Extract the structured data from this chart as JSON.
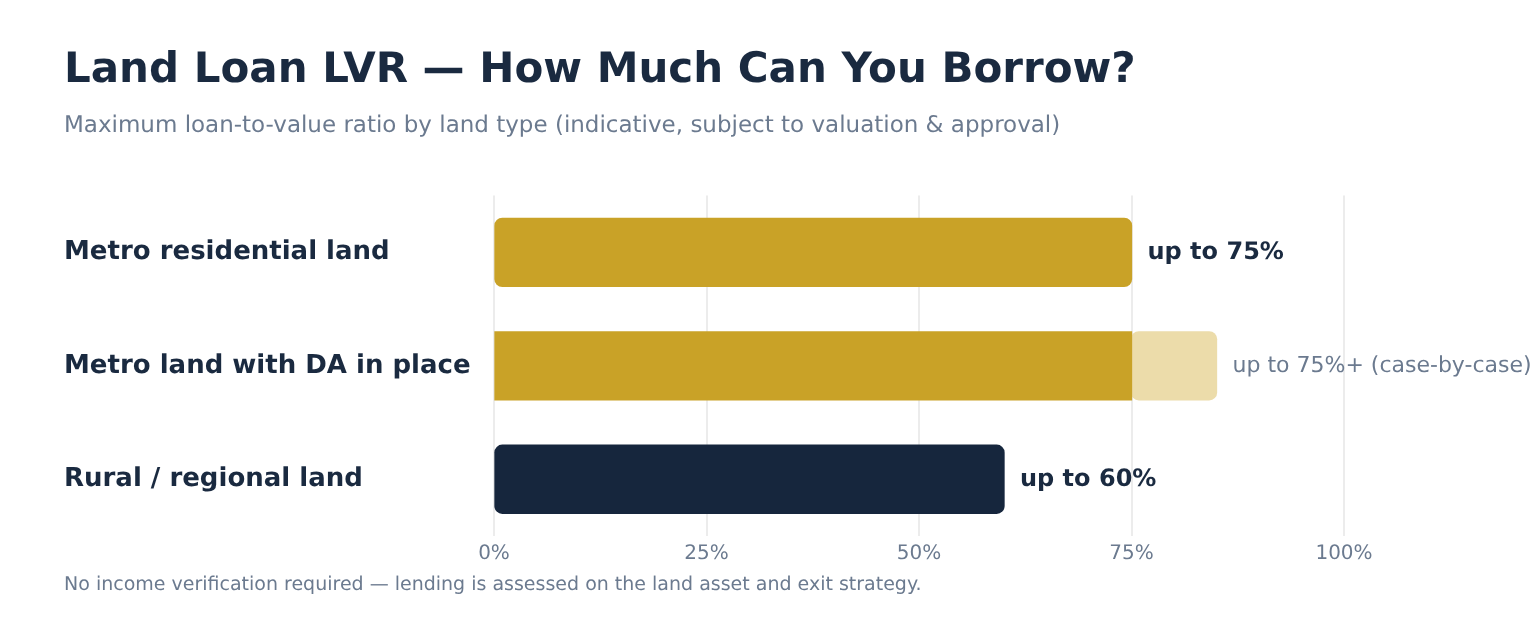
{
  "chart_data": {
    "type": "bar",
    "orientation": "horizontal",
    "stacked": true,
    "title": "Land Loan LVR — How Much Can You Borrow?",
    "subtitle": "Maximum loan-to-value ratio by land type (indicative, subject to valuation & approval)",
    "categories": [
      "Metro residential land",
      "Metro land with DA in place",
      "Rural / regional land"
    ],
    "series": [
      {
        "colors": [
          "#c9a227",
          "#c9a227",
          "#16263d"
        ],
        "values": [
          75,
          75,
          60
        ],
        "value_labels": [
          "up to 75%",
          null,
          "up to 60%"
        ]
      },
      {
        "color": "#ecdcaa",
        "values": [
          null,
          10,
          null
        ],
        "value_labels": [
          null,
          "up to 75%+ (case-by-case)",
          null
        ]
      }
    ],
    "xlim": [
      0,
      100
    ],
    "xticks": [
      {
        "value": 0,
        "label": "0%"
      },
      {
        "value": 25,
        "label": "25%"
      },
      {
        "value": 50,
        "label": "50%"
      },
      {
        "value": 75,
        "label": "75%"
      },
      {
        "value": 100,
        "label": "100%"
      }
    ],
    "grid": "x",
    "legend": false,
    "annotations": [
      "No income verification required — lending is assessed on the land asset and exit strategy."
    ]
  }
}
